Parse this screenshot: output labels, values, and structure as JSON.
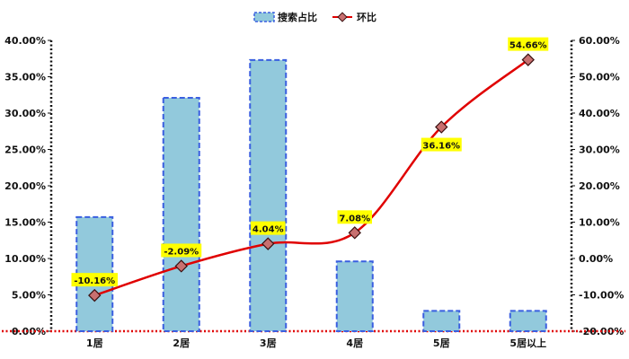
{
  "chart_data": {
    "type": "bar+line",
    "categories": [
      "1居",
      "2居",
      "3居",
      "4居",
      "5居",
      "5居以上"
    ],
    "series": [
      {
        "name": "搜索占比",
        "type": "bar",
        "axis": "left",
        "values": [
          15.7,
          32.1,
          37.3,
          9.6,
          2.8,
          2.8
        ],
        "color": "#92c9dc",
        "edge_color": "#3a5fe0"
      },
      {
        "name": "环比",
        "type": "line",
        "axis": "right",
        "values": [
          -10.16,
          -2.09,
          4.04,
          7.08,
          36.16,
          54.66
        ],
        "labels": [
          "-10.16%",
          "-2.09%",
          "4.04%",
          "7.08%",
          "36.16%",
          "54.66%"
        ],
        "color": "#e00000",
        "marker_color": "#c87070",
        "label_background": "#ffff00"
      }
    ],
    "y_left": {
      "ylim": [
        0,
        40
      ],
      "ticks": [
        "0.00%",
        "5.00%",
        "10.00%",
        "15.00%",
        "20.00%",
        "25.00%",
        "30.00%",
        "35.00%",
        "40.00%"
      ]
    },
    "y_right": {
      "ylim": [
        -20,
        60
      ],
      "ticks": [
        "-20.00%",
        "-10.00%",
        "0.00%",
        "10.00%",
        "20.00%",
        "30.00%",
        "40.00%",
        "50.00%",
        "60.00%"
      ]
    },
    "legend": {
      "position": "top-center",
      "items": [
        "搜索占比",
        "环比"
      ]
    },
    "grid": false
  }
}
